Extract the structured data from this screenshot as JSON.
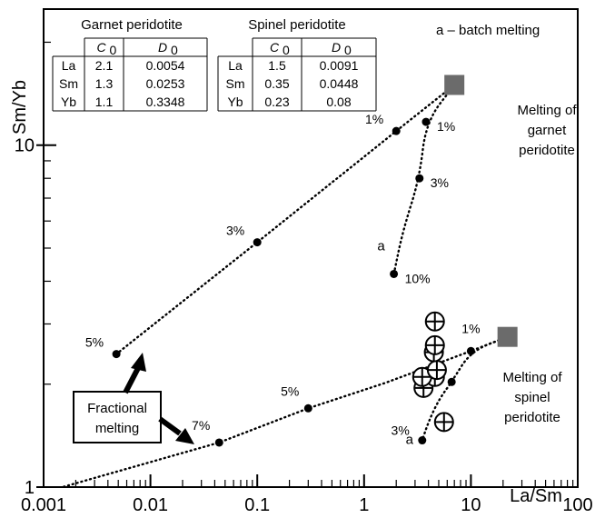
{
  "chart_data": {
    "type": "scatter",
    "xlabel": "La/Sm",
    "ylabel": "Sm/Yb",
    "xscale": "log",
    "yscale": "log",
    "xlim": [
      0.001,
      100
    ],
    "ylim": [
      1,
      25
    ],
    "x_tick_labels": [
      "0.001",
      "0.01",
      "0.1",
      "1",
      "10",
      "100"
    ],
    "y_tick_labels": [
      "1",
      "10"
    ],
    "legend_note": "a – batch melting",
    "tables": [
      {
        "title": "Garnet peridotite",
        "headers": [
          "",
          "C",
          "D"
        ],
        "header_subscripts": [
          "",
          "0",
          "0"
        ],
        "rows": [
          [
            "La",
            "2.1",
            "0.0054"
          ],
          [
            "Sm",
            "1.3",
            "0.0253"
          ],
          [
            "Yb",
            "1.1",
            "0.3348"
          ]
        ]
      },
      {
        "title": "Spinel peridotite",
        "headers": [
          "",
          "C",
          "D"
        ],
        "header_subscripts": [
          "",
          "0",
          "0"
        ],
        "rows": [
          [
            "La",
            "1.5",
            "0.0091"
          ],
          [
            "Sm",
            "0.35",
            "0.0448"
          ],
          [
            "Yb",
            "0.23",
            "0.08"
          ]
        ]
      }
    ],
    "sources": [
      {
        "label_lines": [
          "Melting of",
          "garnet",
          "peridotite"
        ],
        "x": 7,
        "y": 15
      },
      {
        "label_lines": [
          "Melting of",
          "spinel",
          "peridotite"
        ],
        "x": 22,
        "y": 2.75
      }
    ],
    "series": [
      {
        "kind": "fractional",
        "source": "garnet",
        "path": [
          [
            7,
            15
          ],
          [
            2,
            11
          ],
          [
            0.1,
            5.2
          ],
          [
            0.0048,
            2.45
          ]
        ],
        "points": [
          {
            "x": 2,
            "y": 11,
            "label": "1%"
          },
          {
            "x": 0.1,
            "y": 5.2,
            "label": "3%"
          },
          {
            "x": 0.0048,
            "y": 2.45,
            "label": "5%"
          }
        ]
      },
      {
        "kind": "batch",
        "source": "garnet",
        "curve_label": "a",
        "path": [
          [
            7,
            15
          ],
          [
            3.8,
            11.7
          ],
          [
            3.3,
            8
          ],
          [
            2.3,
            5.6
          ],
          [
            1.9,
            4.2
          ]
        ],
        "points": [
          {
            "x": 3.8,
            "y": 11.7,
            "label": "1%"
          },
          {
            "x": 3.3,
            "y": 8,
            "label": "3%"
          },
          {
            "x": 1.9,
            "y": 4.2,
            "label": "10%"
          }
        ]
      },
      {
        "kind": "fractional",
        "source": "spinel",
        "path": [
          [
            22,
            2.75
          ],
          [
            10,
            2.5
          ],
          [
            1.6,
            2.02
          ],
          [
            0.3,
            1.7
          ],
          [
            0.044,
            1.35
          ],
          [
            0.0015,
            1
          ]
        ],
        "points": [
          {
            "x": 10,
            "y": 2.5,
            "label": "1%"
          },
          {
            "x": 0.3,
            "y": 1.7,
            "label": "5%"
          },
          {
            "x": 0.044,
            "y": 1.35,
            "label": "7%"
          }
        ]
      },
      {
        "kind": "batch",
        "source": "spinel",
        "curve_label": "a",
        "path": [
          [
            22,
            2.75
          ],
          [
            10,
            2.5
          ],
          [
            6.6,
            2.03
          ],
          [
            5,
            1.8
          ],
          [
            4,
            1.55
          ],
          [
            3.5,
            1.37
          ]
        ],
        "points": [
          {
            "x": 6.6,
            "y": 2.03,
            "label": ""
          },
          {
            "x": 3.5,
            "y": 1.37,
            "label": "3%"
          }
        ]
      }
    ],
    "samples": [
      {
        "x": 5.6,
        "y": 1.55
      },
      {
        "x": 3.6,
        "y": 1.95
      },
      {
        "x": 4.6,
        "y": 2.1
      },
      {
        "x": 3.5,
        "y": 2.1
      },
      {
        "x": 4.8,
        "y": 2.2
      },
      {
        "x": 4.5,
        "y": 2.48
      },
      {
        "x": 4.6,
        "y": 2.6
      },
      {
        "x": 4.6,
        "y": 3.05
      }
    ],
    "annotation": {
      "text_lines": [
        "Fractional",
        "melting"
      ]
    }
  }
}
